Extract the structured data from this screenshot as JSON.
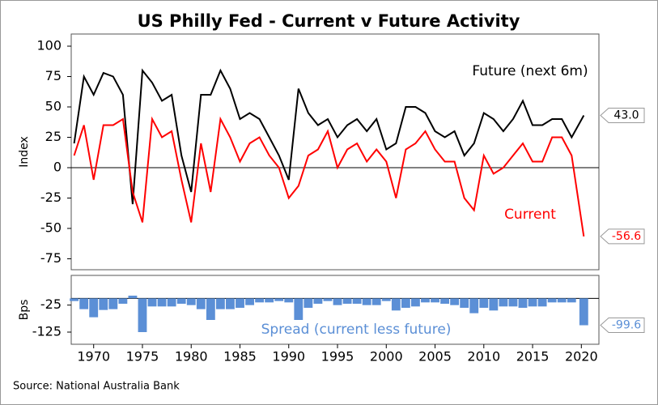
{
  "chart_data": [
    {
      "type": "line",
      "title": "US Philly Fed - Current v Future Activity",
      "y_label": "Index",
      "x": [
        1968,
        1969,
        1970,
        1971,
        1972,
        1973,
        1974,
        1975,
        1976,
        1977,
        1978,
        1979,
        1980,
        1981,
        1982,
        1983,
        1984,
        1985,
        1986,
        1987,
        1988,
        1989,
        1990,
        1991,
        1992,
        1993,
        1994,
        1995,
        1996,
        1997,
        1998,
        1999,
        2000,
        2001,
        2002,
        2003,
        2004,
        2005,
        2006,
        2007,
        2008,
        2009,
        2010,
        2011,
        2012,
        2013,
        2014,
        2015,
        2016,
        2017,
        2018,
        2019,
        2020.25
      ],
      "series": [
        {
          "name": "Future (next 6m)",
          "color": "#000000",
          "end_label": "43.0",
          "values": [
            20,
            75,
            60,
            78,
            75,
            60,
            -30,
            80,
            70,
            55,
            60,
            10,
            -20,
            60,
            60,
            80,
            65,
            40,
            45,
            40,
            25,
            10,
            -10,
            65,
            45,
            35,
            40,
            25,
            35,
            40,
            30,
            40,
            15,
            20,
            50,
            50,
            45,
            30,
            25,
            30,
            10,
            20,
            45,
            40,
            30,
            40,
            55,
            35,
            35,
            40,
            40,
            25,
            43.0
          ]
        },
        {
          "name": "Current",
          "color": "#ff0000",
          "end_label": "-56.6",
          "values": [
            10,
            35,
            -10,
            35,
            35,
            40,
            -20,
            -45,
            40,
            25,
            30,
            -10,
            -45,
            20,
            -20,
            40,
            25,
            5,
            20,
            25,
            10,
            0,
            -25,
            -15,
            10,
            15,
            30,
            0,
            15,
            20,
            5,
            15,
            5,
            -25,
            15,
            20,
            30,
            15,
            5,
            5,
            -25,
            -35,
            10,
            -5,
            0,
            10,
            20,
            5,
            5,
            25,
            25,
            10,
            -56.6
          ]
        }
      ],
      "xlim": [
        1967.7,
        2021.8
      ],
      "ylim": [
        -84,
        110
      ],
      "yticks": [
        -75,
        -50,
        -25,
        0,
        25,
        50,
        75,
        100
      ]
    },
    {
      "type": "bar",
      "y_label": "Bps",
      "x": [
        1968,
        1969,
        1970,
        1971,
        1972,
        1973,
        1974,
        1975,
        1976,
        1977,
        1978,
        1979,
        1980,
        1981,
        1982,
        1983,
        1984,
        1985,
        1986,
        1987,
        1988,
        1989,
        1990,
        1991,
        1992,
        1993,
        1994,
        1995,
        1996,
        1997,
        1998,
        1999,
        2000,
        2001,
        2002,
        2003,
        2004,
        2005,
        2006,
        2007,
        2008,
        2009,
        2010,
        2011,
        2012,
        2013,
        2014,
        2015,
        2016,
        2017,
        2018,
        2019,
        2020.25
      ],
      "series": [
        {
          "name": "Spread (current less future)",
          "color": "#5b8fd6",
          "end_label": "-99.6",
          "values": [
            -10,
            -40,
            -70,
            -43,
            -40,
            -20,
            10,
            -125,
            -30,
            -30,
            -30,
            -20,
            -25,
            -40,
            -80,
            -40,
            -40,
            -35,
            -25,
            -15,
            -15,
            -10,
            -15,
            -80,
            -35,
            -20,
            -10,
            -25,
            -20,
            -20,
            -25,
            -25,
            -10,
            -45,
            -35,
            -30,
            -15,
            -15,
            -20,
            -25,
            -35,
            -55,
            -35,
            -45,
            -30,
            -30,
            -35,
            -30,
            -30,
            -15,
            -15,
            -15,
            -99.6
          ]
        }
      ],
      "xlim": [
        1967.7,
        2021.8
      ],
      "ylim": [
        -170,
        85
      ],
      "yticks": [
        -25,
        -125
      ],
      "xticks": [
        1970,
        1975,
        1980,
        1985,
        1990,
        1995,
        2000,
        2005,
        2010,
        2015,
        2020
      ]
    }
  ],
  "source": "Source: National Australia Bank"
}
